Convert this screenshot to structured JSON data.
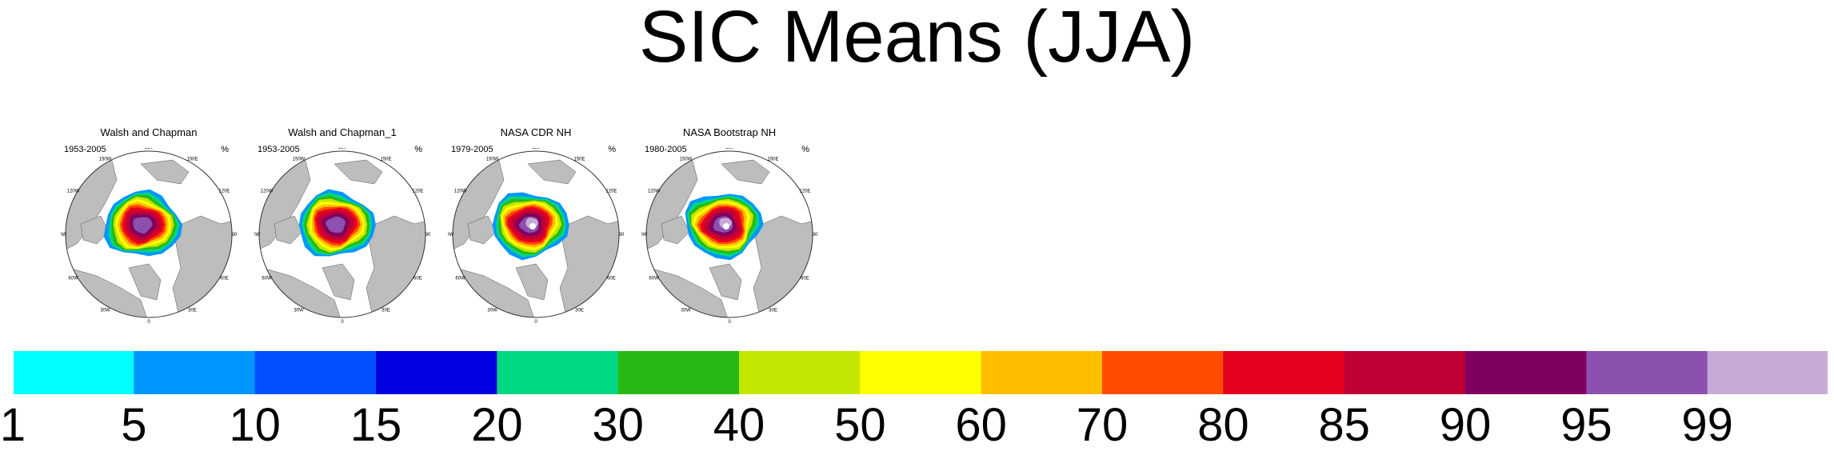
{
  "title": "SIC Means (JJA)",
  "chart_data": {
    "type": "heatmap",
    "title": "SIC Means (JJA)",
    "units": "%",
    "panels": [
      {
        "name": "Walsh and Chapman",
        "years": "1953-2005",
        "units": "%"
      },
      {
        "name": "Walsh and Chapman_1",
        "years": "1953-2005",
        "units": "%"
      },
      {
        "name": "NASA CDR NH",
        "years": "1979-2005",
        "units": "%"
      },
      {
        "name": "NASA Bootstrap NH",
        "years": "1980-2005",
        "units": "%"
      }
    ],
    "longitude_labels": [
      "180",
      "150E",
      "120E",
      "90E",
      "60E",
      "30E",
      "0",
      "30W",
      "60W",
      "90W",
      "120W",
      "150W"
    ],
    "colorbar": {
      "levels": [
        "1",
        "5",
        "10",
        "15",
        "20",
        "30",
        "40",
        "50",
        "60",
        "70",
        "80",
        "85",
        "90",
        "95",
        "99"
      ],
      "colors": [
        "#00ffff",
        "#0096ff",
        "#0050ff",
        "#0000e1",
        "#00d782",
        "#28b914",
        "#c3e600",
        "#ffff00",
        "#ffbe00",
        "#ff4b00",
        "#e6001e",
        "#be0037",
        "#80005f",
        "#8c50af",
        "#c8aad7"
      ]
    }
  }
}
